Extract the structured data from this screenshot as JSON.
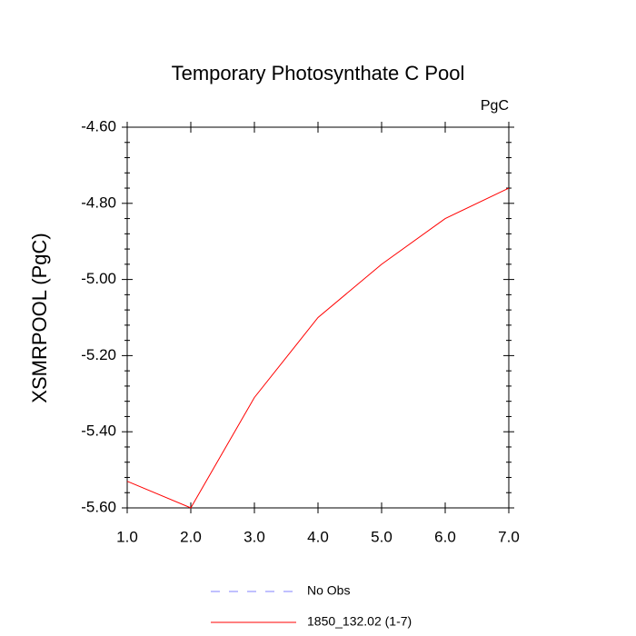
{
  "chart_data": {
    "type": "line",
    "title": "Temporary Photosynthate C Pool",
    "units_label": "PgC",
    "y_label": "XSMRPOOL  (PgC)",
    "x": [
      1,
      2,
      3,
      4,
      5,
      6,
      7
    ],
    "series": [
      {
        "name": "No Obs",
        "color": "#8080ff",
        "dashed": true,
        "values": [
          null,
          null,
          null,
          null,
          null,
          null,
          null
        ]
      },
      {
        "name": "1850_132.02 (1-7)",
        "color": "#ff0000",
        "dashed": false,
        "values": [
          -5.53,
          -5.6,
          -5.31,
          -5.1,
          -4.96,
          -4.84,
          -4.76
        ]
      }
    ],
    "xlim": [
      1,
      7
    ],
    "xticks": [
      {
        "value": 1,
        "label": "1.0"
      },
      {
        "value": 2,
        "label": "2.0"
      },
      {
        "value": 3,
        "label": "3.0"
      },
      {
        "value": 4,
        "label": "4.0"
      },
      {
        "value": 5,
        "label": "5.0"
      },
      {
        "value": 6,
        "label": "6.0"
      },
      {
        "value": 7,
        "label": "7.0"
      }
    ],
    "ylim": [
      -5.6,
      -4.6
    ],
    "yticks": [
      {
        "value": -5.6,
        "label": "-5.60"
      },
      {
        "value": -5.4,
        "label": "-5.40"
      },
      {
        "value": -5.2,
        "label": "-5.20"
      },
      {
        "value": -5.0,
        "label": "-5.00"
      },
      {
        "value": -4.8,
        "label": "-4.80"
      },
      {
        "value": -4.6,
        "label": "-4.60"
      }
    ],
    "y_minor_ticks": [
      -5.56,
      -5.52,
      -5.48,
      -5.44,
      -5.36,
      -5.32,
      -5.28,
      -5.24,
      -5.16,
      -5.12,
      -5.08,
      -5.04,
      -4.96,
      -4.92,
      -4.88,
      -4.84,
      -4.76,
      -4.72,
      -4.68,
      -4.64
    ],
    "grid": false,
    "legend": "bottom"
  }
}
